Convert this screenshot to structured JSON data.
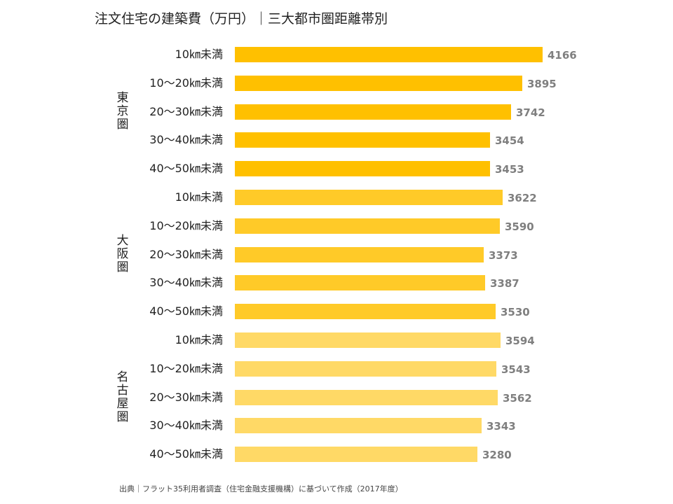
{
  "chart_data": {
    "type": "bar",
    "orientation": "horizontal",
    "title": "注文住宅の建築費（万円）｜三大都市圏距離帯別",
    "source": "出典｜フラット35利用者調査（住宅金融支援機構）に基づいて作成（2017年度）",
    "xlim": [
      0,
      4166
    ],
    "grid": false,
    "legend": "none",
    "groups": [
      {
        "name": "東京圏",
        "color": "#FFC000",
        "categories": [
          "10㎞未満",
          "10～20㎞未満",
          "20～30㎞未満",
          "30～40㎞未満",
          "40～50㎞未満"
        ],
        "values": [
          4166,
          3895,
          3742,
          3454,
          3453
        ]
      },
      {
        "name": "大阪圏",
        "color": "#FFCA28",
        "categories": [
          "10㎞未満",
          "10～20㎞未満",
          "20～30㎞未満",
          "30～40㎞未満",
          "40～50㎞未満"
        ],
        "values": [
          3622,
          3590,
          3373,
          3387,
          3530
        ]
      },
      {
        "name": "名古屋圏",
        "color": "#FFD966",
        "categories": [
          "10㎞未満",
          "10～20㎞未満",
          "20～30㎞未満",
          "30～40㎞未満",
          "40～50㎞未満"
        ],
        "values": [
          3594,
          3543,
          3562,
          3343,
          3280
        ]
      }
    ]
  }
}
